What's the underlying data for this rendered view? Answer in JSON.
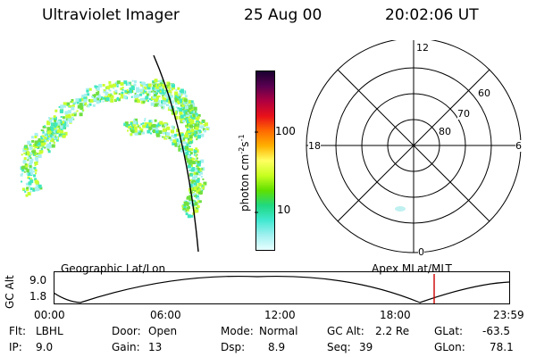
{
  "header": {
    "instrument": "Ultraviolet Imager",
    "date": "25 Aug 00",
    "time": "20:02:06 UT"
  },
  "colorbar": {
    "label_html": "photon cm⁻² s⁻¹",
    "label_main": "photon cm",
    "label_sup1": "-2",
    "label_s": "s",
    "label_sup2": "-1",
    "ticks": [
      "100",
      "10"
    ],
    "colors": [
      "#1a0030",
      "#5a0050",
      "#b00040",
      "#e8101a",
      "#ff6a00",
      "#ffb000",
      "#ffff60",
      "#c8ff20",
      "#60e000",
      "#20d880",
      "#40e8d0",
      "#a0f0f0",
      "#e8ffff"
    ]
  },
  "polar_plot": {
    "mlt_labels": {
      "top": "12",
      "left": "18",
      "right": "6",
      "bottom": "0"
    },
    "lat_labels": [
      "60",
      "70",
      "80"
    ]
  },
  "orbit_strip": {
    "left_title": "Geographic Lat/Lon",
    "right_title": "Apex MLat/MLT",
    "y_axis_label": "GC Alt",
    "y_ticks": [
      "9.0",
      "1.8"
    ],
    "x_ticks": [
      "00:00",
      "06:00",
      "12:00",
      "18:00",
      "23:59"
    ],
    "marker_color": "#cc0000"
  },
  "footer": {
    "filter_label": "Flt:",
    "filter_value": "LBHL",
    "ip_label": "IP:",
    "ip_value": "9.0",
    "door_label": "Door:",
    "door_value": "Open",
    "gain_label": "Gain:",
    "gain_value": "13",
    "mode_label": "Mode:",
    "mode_value": "Normal",
    "dsp_label": "Dsp:",
    "dsp_value": "8.9",
    "gcalt_label": "GC Alt:",
    "gcalt_value": "2.2 Re",
    "seq_label": "Seq:",
    "seq_value": "39",
    "glat_label": "GLat:",
    "glat_value": "-63.5",
    "glon_label": "GLon:",
    "glon_value": "78.1"
  },
  "colors": {
    "aurora_low": "#40e8c0",
    "aurora_mid": "#70e040",
    "aurora_high": "#c8ff30"
  }
}
